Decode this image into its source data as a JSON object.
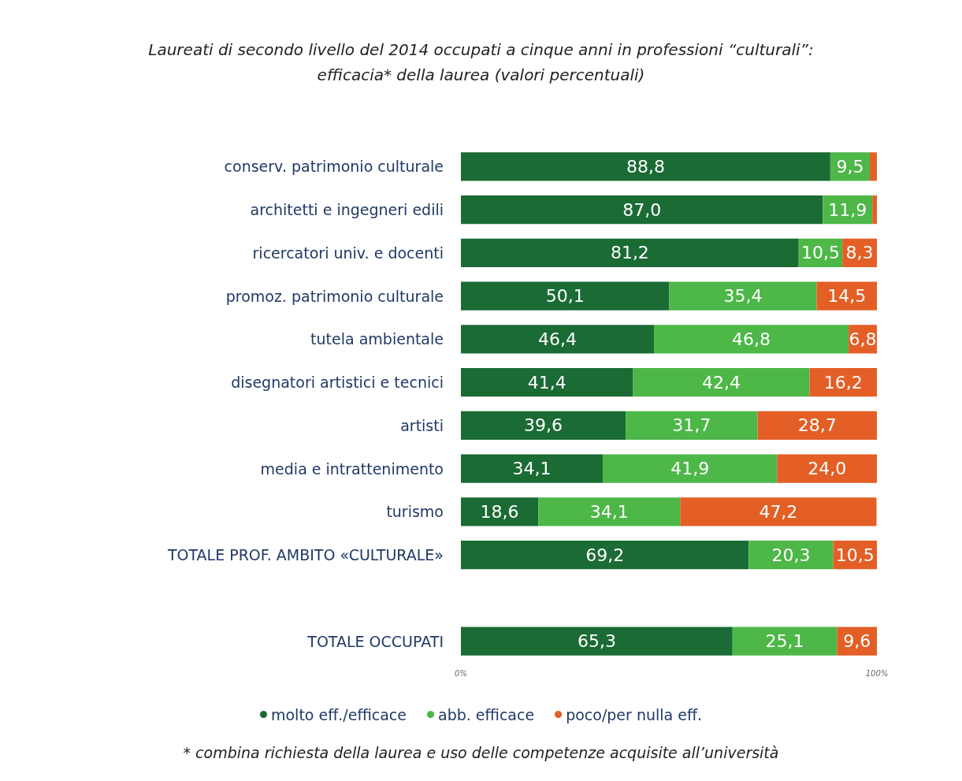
{
  "chart_data": {
    "type": "bar",
    "orientation": "horizontal",
    "stacked": true,
    "title": "Laureati di secondo livello del 2014 occupati a cinque anni in professioni “culturali”:\nefficacia* della laurea (valori percentuali)",
    "categories": [
      "conserv. patrimonio culturale",
      "architetti e ingegneri edili",
      "ricercatori univ. e docenti",
      "promoz. patrimonio culturale",
      "tutela ambientale",
      "disegnatori artistici e tecnici",
      "artisti",
      "media e intrattenimento",
      "turismo",
      "TOTALE PROF. AMBITO «CULTURALE»",
      null,
      "TOTALE OCCUPATI"
    ],
    "series": [
      {
        "name": "molto eff./efficace",
        "color": "#1b6b35",
        "values": [
          88.8,
          87.0,
          81.2,
          50.1,
          46.4,
          41.4,
          39.6,
          34.1,
          18.6,
          69.2,
          null,
          65.3
        ],
        "value_labels": [
          "88,8",
          "87,0",
          "81,2",
          "50,1",
          "46,4",
          "41,4",
          "39,6",
          "34,1",
          "18,6",
          "69,2",
          null,
          "65,3"
        ]
      },
      {
        "name": "abb. efficace",
        "color": "#4db748",
        "values": [
          9.5,
          11.9,
          10.5,
          35.4,
          46.8,
          42.4,
          31.7,
          41.9,
          34.1,
          20.3,
          null,
          25.1
        ],
        "value_labels": [
          "9,5",
          "11,9",
          "10,5",
          "35,4",
          "46,8",
          "42,4",
          "31,7",
          "41,9",
          "34,1",
          "20,3",
          null,
          "25,1"
        ]
      },
      {
        "name": "poco/per nulla eff.",
        "color": "#e35f26",
        "values": [
          1.7,
          1.1,
          8.3,
          14.5,
          6.8,
          16.2,
          28.7,
          24.0,
          47.2,
          10.5,
          null,
          9.6
        ],
        "value_labels": [
          null,
          null,
          "8,3",
          "14,5",
          "6,8",
          "16,2",
          "28,7",
          "24,0",
          "47,2",
          "10,5",
          null,
          "9,6"
        ]
      }
    ],
    "xlim": [
      0,
      100
    ],
    "xticks": [
      {
        "value": 0,
        "label": "0%"
      },
      {
        "value": 100,
        "label": "100%"
      }
    ],
    "legend": "bottom",
    "annotations": [
      "* combina richiesta della laurea e uso delle competenze acquisite all’università"
    ]
  }
}
